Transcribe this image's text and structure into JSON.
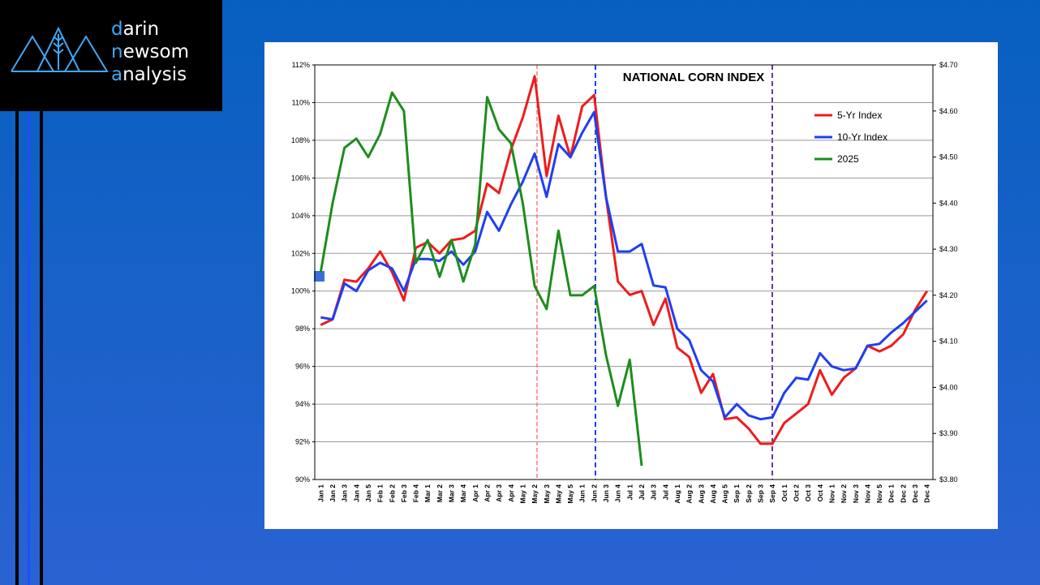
{
  "logo": [
    "darin",
    "newsom",
    "analysis"
  ],
  "chart_data": {
    "type": "line",
    "title": "NATIONAL CORN INDEX",
    "categories": [
      "Jan 1",
      "Jan 2",
      "Jan 3",
      "Jan 4",
      "Jan 5",
      "Feb 1",
      "Feb 2",
      "Feb 3",
      "Feb 4",
      "Mar 1",
      "Mar 2",
      "Mar 3",
      "Mar 4",
      "Apr 1",
      "Apr 2",
      "Apr 3",
      "Apr 4",
      "May 1",
      "May 2",
      "May 3",
      "May 4",
      "May 5",
      "Jun 1",
      "Jun 2",
      "Jun 3",
      "Jun 4",
      "Jul 1",
      "Jul 2",
      "Jul 3",
      "Jul 4",
      "Aug 1",
      "Aug 2",
      "Aug 3",
      "Aug 4",
      "Aug 5",
      "Sep 1",
      "Sep 2",
      "Sep 3",
      "Sep 4",
      "Oct 1",
      "Oct 2",
      "Oct 3",
      "Oct 4",
      "Nov 1",
      "Nov 2",
      "Nov 3",
      "Nov 4",
      "Nov 5",
      "Dec 1",
      "Dec 2",
      "Dec 3",
      "Dec 4"
    ],
    "series": [
      {
        "name": "5-Yr Index",
        "color": "#ee1c1c",
        "values": [
          98.2,
          98.5,
          100.6,
          100.5,
          101.2,
          102.1,
          101.0,
          99.5,
          102.3,
          102.6,
          102.0,
          102.7,
          102.8,
          103.2,
          105.7,
          105.2,
          107.5,
          109.2,
          111.4,
          106.1,
          109.3,
          107.1,
          109.8,
          110.4,
          105.0,
          100.5,
          99.8,
          100.0,
          98.2,
          99.6,
          97.0,
          96.5,
          94.6,
          95.6,
          93.2,
          93.3,
          92.7,
          91.9,
          91.9,
          93.0,
          93.5,
          94.0,
          95.8,
          94.5,
          95.4,
          95.9,
          97.1,
          96.8,
          97.1,
          97.7,
          99.0,
          100.0
        ]
      },
      {
        "name": "10-Yr Index",
        "color": "#1f3ff0",
        "values": [
          98.6,
          98.5,
          100.4,
          100.0,
          101.1,
          101.5,
          101.2,
          100.0,
          101.7,
          101.7,
          101.6,
          102.1,
          101.4,
          102.1,
          104.2,
          103.2,
          104.6,
          105.8,
          107.3,
          105.0,
          107.8,
          107.1,
          108.4,
          109.5,
          105.0,
          102.1,
          102.1,
          102.5,
          100.3,
          100.2,
          98.0,
          97.4,
          95.8,
          95.2,
          93.3,
          94.0,
          93.4,
          93.2,
          93.3,
          94.6,
          95.4,
          95.3,
          96.7,
          96.0,
          95.8,
          95.9,
          97.1,
          97.2,
          97.8,
          98.3,
          98.9,
          99.5
        ]
      },
      {
        "name": "2025",
        "color": "#1e8c1e",
        "axis": "y2",
        "values": [
          4.25,
          4.4,
          4.52,
          4.54,
          4.5,
          4.55,
          4.64,
          4.6,
          4.27,
          4.32,
          4.24,
          4.32,
          4.23,
          4.31,
          4.63,
          4.56,
          4.53,
          4.4,
          4.22,
          4.17,
          4.34,
          4.2,
          4.2,
          4.22,
          4.07,
          3.96,
          4.06,
          3.83,
          null,
          null,
          null,
          null,
          null,
          null,
          null,
          null,
          null,
          null,
          null,
          null,
          null,
          null,
          null,
          null,
          null,
          null,
          null,
          null,
          null,
          null,
          null,
          null
        ]
      }
    ],
    "ylim": [
      90,
      112
    ],
    "yticks": [
      {
        "value": 90,
        "label": "90%"
      },
      {
        "value": 92,
        "label": "92%"
      },
      {
        "value": 94,
        "label": "94%"
      },
      {
        "value": 96,
        "label": "96%"
      },
      {
        "value": 98,
        "label": "98%"
      },
      {
        "value": 100,
        "label": "100%"
      },
      {
        "value": 102,
        "label": "102%"
      },
      {
        "value": 104,
        "label": "104%"
      },
      {
        "value": 106,
        "label": "106%"
      },
      {
        "value": 108,
        "label": "108%"
      },
      {
        "value": 110,
        "label": "110%"
      },
      {
        "value": 112,
        "label": "112%"
      }
    ],
    "y2lim": [
      3.8,
      4.7
    ],
    "y2ticks": [
      {
        "value": 3.8,
        "label": "$3.80"
      },
      {
        "value": 3.9,
        "label": "$3.90"
      },
      {
        "value": 4.0,
        "label": "$4.00"
      },
      {
        "value": 4.1,
        "label": "$4.10"
      },
      {
        "value": 4.2,
        "label": "$4.20"
      },
      {
        "value": 4.3,
        "label": "$4.30"
      },
      {
        "value": 4.4,
        "label": "$4.40"
      },
      {
        "value": 4.5,
        "label": "$4.50"
      },
      {
        "value": 4.6,
        "label": "$4.60"
      },
      {
        "value": 4.7,
        "label": "$4.70"
      }
    ],
    "grid": true,
    "legend": "upper right"
  }
}
